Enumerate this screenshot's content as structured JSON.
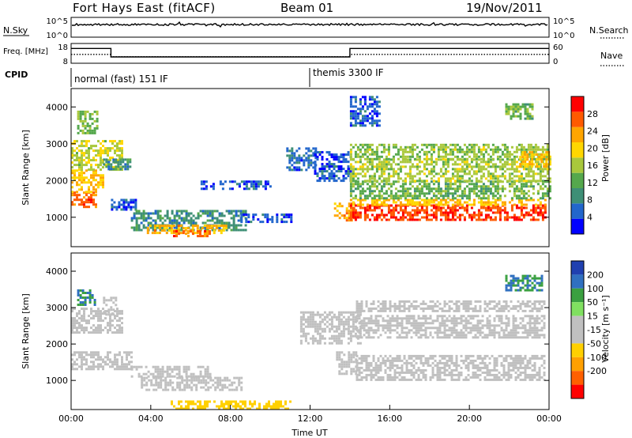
{
  "header": {
    "station": "Fort Hays East (fitACF)",
    "beam": "Beam 01",
    "date": "19/Nov/2011"
  },
  "colors": {
    "axis": "#000000",
    "trace": "#000000",
    "power_scale": [
      "#0000ff",
      "#2266cc",
      "#3e8f76",
      "#55a84c",
      "#a9c83c",
      "#ffd700",
      "#ffa500",
      "#ff5a00",
      "#ff0000"
    ],
    "velocity_scale": [
      "#2040b0",
      "#3070c0",
      "#3aa040",
      "#80e060",
      "#c0c0c0",
      "#c0c0c0",
      "#ffd000",
      "#ffa000",
      "#ff6000",
      "#ff0000"
    ]
  },
  "chart_data": [
    {
      "type": "line",
      "panel": "noise",
      "left_label": "N.Sky",
      "right_label": "N.Search",
      "left_ticks": [
        "10^5",
        "10^0"
      ],
      "right_ticks": [
        "10^5",
        "10^0"
      ],
      "legend_style": "dotted",
      "series": [
        {
          "name": "N.Sky",
          "style": "solid",
          "x": [
            0,
            24
          ],
          "y": [
            10000,
            10000
          ]
        }
      ]
    },
    {
      "type": "line",
      "panel": "frequency",
      "left_label": "Freq. [MHz]",
      "right_label": "Nave",
      "left_ticks": [
        "18",
        "8"
      ],
      "right_ticks": [
        "60",
        "0"
      ],
      "ylim": [
        8,
        18
      ],
      "series": [
        {
          "name": "Freq.",
          "style": "solid",
          "x": [
            0,
            2.0,
            2.0,
            14.0,
            14.0,
            24
          ],
          "y": [
            15.5,
            15.5,
            11.2,
            11.2,
            15.5,
            15.5
          ]
        },
        {
          "name": "Nave",
          "style": "dotted",
          "x": [
            0,
            2.0,
            2.0,
            14.0,
            14.0,
            24
          ],
          "y": [
            12.5,
            12.5,
            11.3,
            11.3,
            12.5,
            12.5
          ]
        }
      ]
    },
    {
      "type": "table",
      "panel": "cpid",
      "label": "CPID",
      "segments": [
        {
          "start": 0,
          "end": 12.0,
          "text": "normal (fast) 151 IF"
        },
        {
          "start": 12.0,
          "end": 24,
          "text": "themis 3300 IF"
        }
      ]
    },
    {
      "type": "heatmap",
      "panel": "power",
      "ylabel": "Slant Range [km]",
      "yticks": [
        1000,
        2000,
        3000,
        4000
      ],
      "ylim": [
        200,
        4500
      ],
      "xlim": [
        0,
        24
      ],
      "colorbar": {
        "label": "Power [dB]",
        "ticks": [
          4,
          8,
          12,
          16,
          20,
          24,
          28
        ],
        "range": [
          0,
          32
        ]
      },
      "regions": [
        {
          "t0": 0.0,
          "t1": 1.3,
          "r0": 1300,
          "r1": 1700,
          "level": 27
        },
        {
          "t0": 0.0,
          "t1": 1.6,
          "r0": 1700,
          "r1": 2300,
          "level": 21
        },
        {
          "t0": 0.0,
          "t1": 2.6,
          "r0": 2300,
          "r1": 3100,
          "level": 17
        },
        {
          "t0": 0.3,
          "t1": 1.3,
          "r0": 3300,
          "r1": 3900,
          "level": 14
        },
        {
          "t0": 1.6,
          "t1": 3.0,
          "r0": 2300,
          "r1": 2600,
          "level": 9
        },
        {
          "t0": 2.0,
          "t1": 3.2,
          "r0": 1200,
          "r1": 1500,
          "level": 5
        },
        {
          "t0": 3.0,
          "t1": 8.8,
          "r0": 650,
          "r1": 1200,
          "level": 9
        },
        {
          "t0": 3.8,
          "t1": 7.8,
          "r0": 600,
          "r1": 800,
          "level": 22
        },
        {
          "t0": 5.0,
          "t1": 7.0,
          "r0": 500,
          "r1": 650,
          "level": 26
        },
        {
          "t0": 6.5,
          "t1": 10.0,
          "r0": 1800,
          "r1": 2000,
          "level": 5
        },
        {
          "t0": 8.5,
          "t1": 11.0,
          "r0": 900,
          "r1": 1100,
          "level": 5
        },
        {
          "t0": 10.8,
          "t1": 12.3,
          "r0": 2300,
          "r1": 2900,
          "level": 6
        },
        {
          "t0": 12.2,
          "t1": 14.0,
          "r0": 2000,
          "r1": 2800,
          "level": 5
        },
        {
          "t0": 13.2,
          "t1": 14.2,
          "r0": 900,
          "r1": 1400,
          "level": 23
        },
        {
          "t0": 14.0,
          "t1": 23.8,
          "r0": 900,
          "r1": 1350,
          "level": 28
        },
        {
          "t0": 14.0,
          "t1": 23.8,
          "r0": 1350,
          "r1": 1500,
          "level": 21
        },
        {
          "t0": 14.0,
          "t1": 24.0,
          "r0": 1500,
          "r1": 2000,
          "level": 13
        },
        {
          "t0": 14.0,
          "t1": 24.0,
          "r0": 2000,
          "r1": 2600,
          "level": 16
        },
        {
          "t0": 14.0,
          "t1": 24.0,
          "r0": 2600,
          "r1": 3000,
          "level": 15
        },
        {
          "t0": 22.5,
          "t1": 24.0,
          "r0": 2400,
          "r1": 2800,
          "level": 21
        },
        {
          "t0": 14.0,
          "t1": 15.5,
          "r0": 3500,
          "r1": 4300,
          "level": 5
        },
        {
          "t0": 21.8,
          "t1": 23.2,
          "r0": 3700,
          "r1": 4100,
          "level": 13
        }
      ]
    },
    {
      "type": "heatmap",
      "panel": "velocity",
      "ylabel": "Slant Range [km]",
      "xlabel": "Time UT",
      "yticks": [
        1000,
        2000,
        3000,
        4000
      ],
      "ylim": [
        200,
        4500
      ],
      "xlim": [
        0,
        24
      ],
      "xticks": [
        "00:00",
        "04:00",
        "08:00",
        "12:00",
        "16:00",
        "20:00",
        "00:00"
      ],
      "colorbar": {
        "label": "Velocity [m s⁻¹]",
        "ticks": [
          200,
          100,
          50,
          15,
          -15,
          -50,
          -100,
          -200
        ],
        "range": [
          -250,
          250
        ]
      },
      "regions": [
        {
          "t0": 0.0,
          "t1": 2.5,
          "r0": 2300,
          "r1": 3000,
          "level": 0
        },
        {
          "t0": 0.0,
          "t1": 3.0,
          "r0": 1300,
          "r1": 1800,
          "level": 0
        },
        {
          "t0": 0.3,
          "t1": 1.2,
          "r0": 3100,
          "r1": 3500,
          "level": 150
        },
        {
          "t0": 1.6,
          "t1": 2.3,
          "r0": 2800,
          "r1": 3300,
          "level": 40
        },
        {
          "t0": 3.0,
          "t1": 7.0,
          "r0": 1100,
          "r1": 1400,
          "level": 0
        },
        {
          "t0": 3.5,
          "t1": 8.5,
          "r0": 750,
          "r1": 1100,
          "level": 0
        },
        {
          "t0": 5.0,
          "t1": 11.0,
          "r0": 250,
          "r1": 450,
          "level": -60
        },
        {
          "t0": 11.5,
          "t1": 14.5,
          "r0": 2000,
          "r1": 2900,
          "level": 0
        },
        {
          "t0": 13.3,
          "t1": 14.3,
          "r0": 1200,
          "r1": 1800,
          "level": 40
        },
        {
          "t0": 14.3,
          "t1": 23.8,
          "r0": 1000,
          "r1": 1700,
          "level": 0
        },
        {
          "t0": 14.3,
          "t1": 23.8,
          "r0": 2200,
          "r1": 2800,
          "level": 0
        },
        {
          "t0": 14.3,
          "t1": 23.8,
          "r0": 2900,
          "r1": 3200,
          "level": 40
        },
        {
          "t0": 21.8,
          "t1": 23.6,
          "r0": 3500,
          "r1": 3900,
          "level": 150
        }
      ]
    }
  ]
}
